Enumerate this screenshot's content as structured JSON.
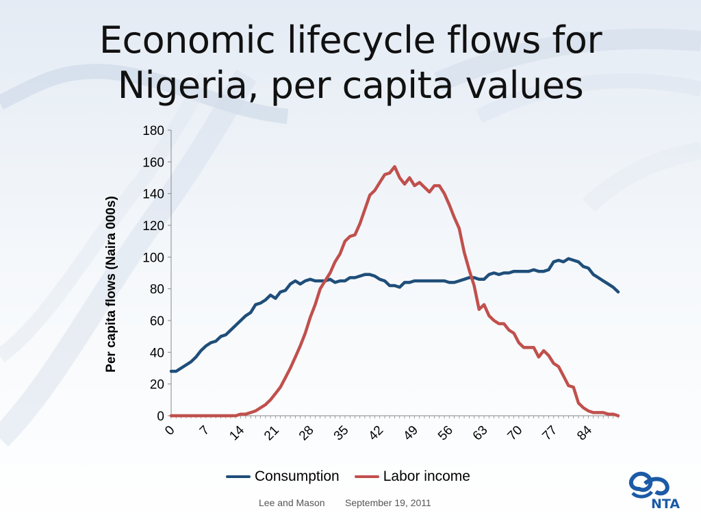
{
  "slide": {
    "title_line1": "Economic lifecycle flows for",
    "title_line2": "Nigeria, per capita values",
    "footer_authors": "Lee and Mason",
    "footer_date": "September 19, 2011",
    "logo_text": "NTA"
  },
  "colors": {
    "consumption": "#1f4e79",
    "labor_income": "#c0504d",
    "logo": "#1b5aa6"
  },
  "chart_data": {
    "type": "line",
    "title": "Economic lifecycle flows for Nigeria, per capita values",
    "xlabel": "",
    "ylabel": "Per capita flows (Naira 000s)",
    "xlim": [
      0,
      90
    ],
    "ylim": [
      0,
      180
    ],
    "x_ticks": [
      0,
      7,
      14,
      21,
      28,
      35,
      42,
      49,
      56,
      63,
      70,
      77,
      84
    ],
    "y_ticks": [
      0,
      20,
      40,
      60,
      80,
      100,
      120,
      140,
      160,
      180
    ],
    "grid": false,
    "legend_position": "bottom",
    "series": [
      {
        "name": "Consumption",
        "x": [
          0,
          1,
          2,
          3,
          4,
          5,
          6,
          7,
          8,
          9,
          10,
          11,
          12,
          13,
          14,
          15,
          16,
          17,
          18,
          19,
          20,
          21,
          22,
          23,
          24,
          25,
          26,
          27,
          28,
          29,
          30,
          31,
          32,
          33,
          34,
          35,
          36,
          37,
          38,
          39,
          40,
          41,
          42,
          43,
          44,
          45,
          46,
          47,
          48,
          49,
          50,
          51,
          52,
          53,
          54,
          55,
          56,
          57,
          58,
          59,
          60,
          61,
          62,
          63,
          64,
          65,
          66,
          67,
          68,
          69,
          70,
          71,
          72,
          73,
          74,
          75,
          76,
          77,
          78,
          79,
          80,
          81,
          82,
          83,
          84,
          85,
          86,
          87,
          88,
          89,
          90
        ],
        "values": [
          28,
          28,
          30,
          32,
          34,
          37,
          41,
          44,
          46,
          47,
          50,
          51,
          54,
          57,
          60,
          63,
          65,
          70,
          71,
          73,
          76,
          74,
          78,
          79,
          83,
          85,
          83,
          85,
          86,
          85,
          85,
          85,
          86,
          84,
          85,
          85,
          87,
          87,
          88,
          89,
          89,
          88,
          86,
          85,
          82,
          82,
          81,
          84,
          84,
          85,
          85,
          85,
          85,
          85,
          85,
          85,
          84,
          84,
          85,
          86,
          87,
          87,
          86,
          86,
          89,
          90,
          89,
          90,
          90,
          91,
          91,
          91,
          91,
          92,
          91,
          91,
          92,
          97,
          98,
          97,
          99,
          98,
          97,
          94,
          93,
          89,
          87,
          85,
          83,
          81,
          78
        ]
      },
      {
        "name": "Labor income",
        "x": [
          0,
          1,
          2,
          3,
          4,
          5,
          6,
          7,
          8,
          9,
          10,
          11,
          12,
          13,
          14,
          15,
          16,
          17,
          18,
          19,
          20,
          21,
          22,
          23,
          24,
          25,
          26,
          27,
          28,
          29,
          30,
          31,
          32,
          33,
          34,
          35,
          36,
          37,
          38,
          39,
          40,
          41,
          42,
          43,
          44,
          45,
          46,
          47,
          48,
          49,
          50,
          51,
          52,
          53,
          54,
          55,
          56,
          57,
          58,
          59,
          60,
          61,
          62,
          63,
          64,
          65,
          66,
          67,
          68,
          69,
          70,
          71,
          72,
          73,
          74,
          75,
          76,
          77,
          78,
          79,
          80,
          81,
          82,
          83,
          84,
          85,
          86,
          87,
          88,
          89,
          90
        ],
        "values": [
          0,
          0,
          0,
          0,
          0,
          0,
          0,
          0,
          0,
          0,
          0,
          0,
          0,
          0,
          1,
          1,
          2,
          3,
          5,
          7,
          10,
          14,
          18,
          24,
          30,
          37,
          44,
          52,
          62,
          70,
          80,
          85,
          90,
          97,
          102,
          110,
          113,
          114,
          121,
          130,
          139,
          142,
          147,
          152,
          153,
          157,
          150,
          146,
          150,
          145,
          147,
          144,
          141,
          145,
          145,
          140,
          133,
          125,
          118,
          103,
          92,
          82,
          67,
          70,
          63,
          60,
          58,
          58,
          54,
          52,
          46,
          43,
          43,
          43,
          37,
          41,
          38,
          33,
          31,
          25,
          19,
          18,
          8,
          5,
          3,
          2,
          2,
          2,
          1,
          1,
          0
        ]
      }
    ]
  }
}
